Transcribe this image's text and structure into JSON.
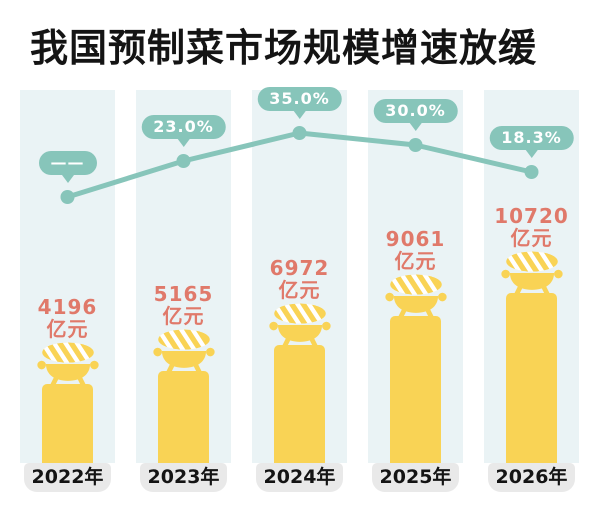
{
  "title": "我国预制菜市场规模增速放缓",
  "chart_data": {
    "type": "bar+line",
    "title": "我国预制菜市场规模增速放缓",
    "categories": [
      "2022年",
      "2023年",
      "2024年",
      "2025年",
      "2026年"
    ],
    "bar_series": {
      "name": "市场规模",
      "unit": "亿元",
      "values": [
        4196,
        5165,
        6972,
        9061,
        10720
      ]
    },
    "line_series": {
      "name": "增速",
      "unit": "%",
      "values": [
        null,
        23.0,
        35.0,
        30.0,
        18.3
      ],
      "labels": [
        "——",
        "23.0%",
        "35.0%",
        "30.0%",
        "18.3%"
      ]
    },
    "legend": "none",
    "grid": false,
    "axes_visible": false,
    "ylim_bar": [
      0,
      10720
    ],
    "layout_hint": "5 pale columns, yellow bars with grill icon on top, growth line with callout bubbles above"
  },
  "colors": {
    "bar": "#F9D355",
    "line_and_bubble": "#87C5BA",
    "value_text": "#E0796A",
    "column_bg": "#EAF3F5",
    "year_label_bg": "#E9E9E9",
    "title_text": "#141414",
    "bubble_text": "#FFFFFF",
    "page_bg": "#FFFFFF"
  },
  "icons": {
    "bar_top_icon": "grill-pot-icon"
  }
}
